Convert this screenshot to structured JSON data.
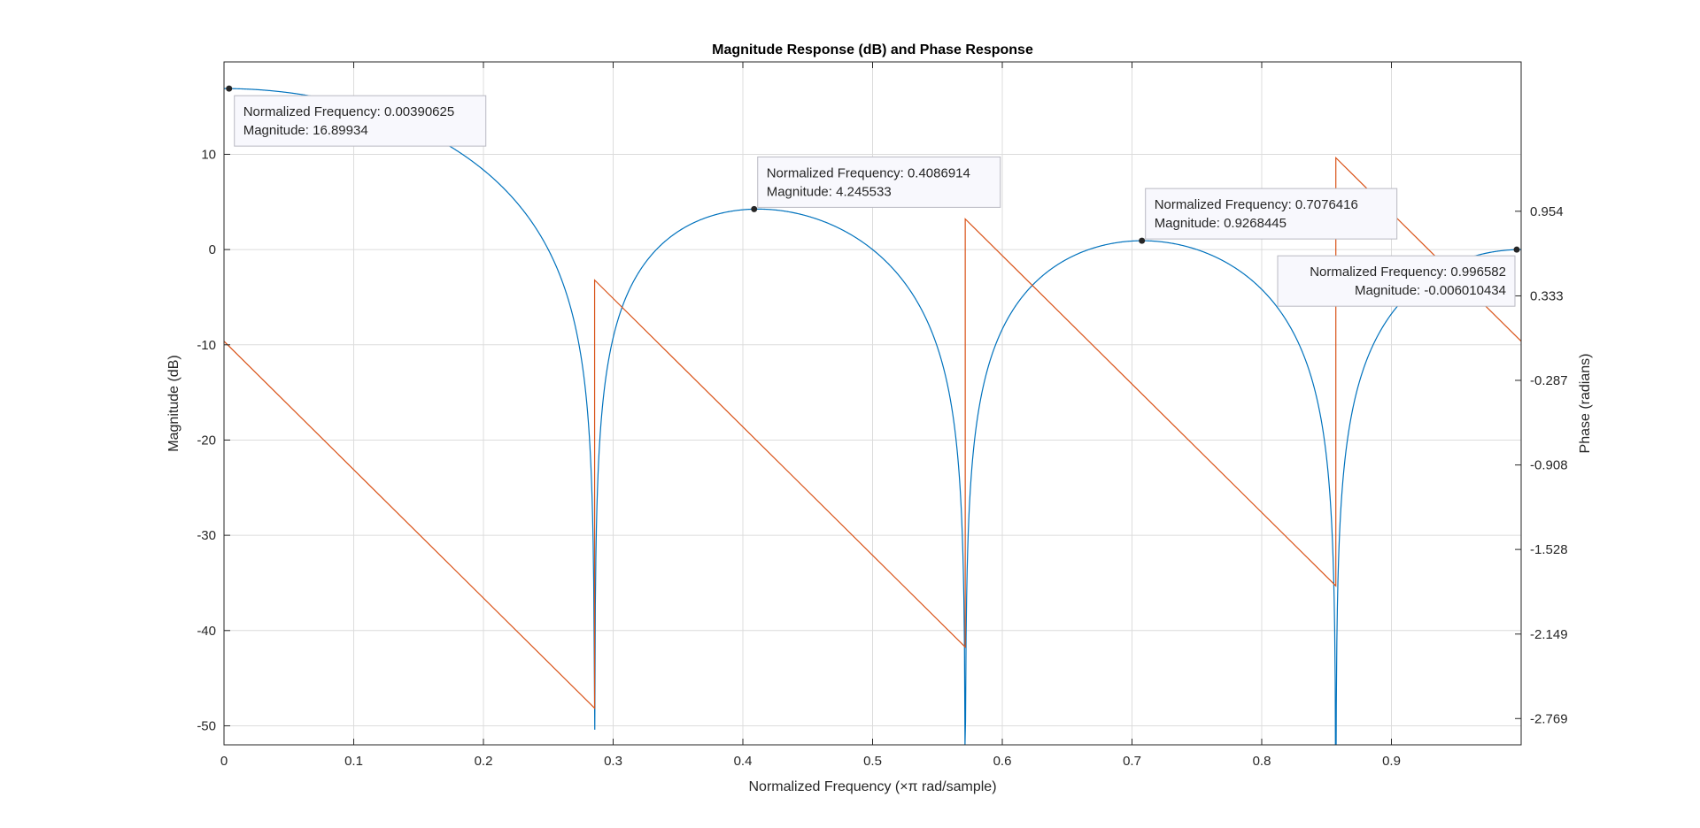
{
  "chart_data": {
    "type": "line",
    "title": "Magnitude Response (dB) and Phase Response",
    "xlabel": "Normalized Frequency (×π rad/sample)",
    "ylabel_left": "Magnitude (dB)",
    "ylabel_right": "Phase (radians)",
    "xlim": [
      0,
      1
    ],
    "ylim_left": [
      -52,
      19.7
    ],
    "ylim_right": [
      -2.962,
      2.05
    ],
    "grid": true,
    "x_ticks": [
      0,
      0.1,
      0.2,
      0.3,
      0.4,
      0.5,
      0.6,
      0.7,
      0.8,
      0.9
    ],
    "x_tick_labels": [
      "0",
      "0.1",
      "0.2",
      "0.3",
      "0.4",
      "0.5",
      "0.6",
      "0.7",
      "0.8",
      "0.9"
    ],
    "y_left_ticks": [
      10,
      0,
      -10,
      -20,
      -30,
      -40,
      -50
    ],
    "y_left_tick_labels": [
      "10",
      "0",
      "-10",
      "-20",
      "-30",
      "-40",
      "-50"
    ],
    "y_right_ticks": [
      0.954,
      0.333,
      -0.287,
      -0.908,
      -1.528,
      -2.149,
      -2.769
    ],
    "y_right_tick_labels": [
      "0.954",
      "0.333",
      "-0.287",
      "-0.908",
      "-1.528",
      "-2.149",
      "-2.769"
    ],
    "series": [
      {
        "name": "Magnitude",
        "axis": "left",
        "color": "#0072bd",
        "model": "moving_average",
        "taps": 7,
        "gain": 7,
        "floor_db": -52
      },
      {
        "name": "Phase",
        "axis": "right",
        "color": "#d95319",
        "model": "linear_wrapped",
        "slope_rad_per_unit": -9.42478,
        "wrap_jumps": [
          0.2857143,
          0.5714286,
          0.8571429
        ],
        "jump_size_rad": 3.14159
      }
    ],
    "datatips": [
      {
        "x": 0.00390625,
        "y": 16.89934,
        "line1": "Normalized Frequency: 0.00390625",
        "line2": "Magnitude: 16.89934",
        "align": "left"
      },
      {
        "x": 0.4086914,
        "y": 4.245533,
        "line1": "Normalized Frequency: 0.4086914",
        "line2": "Magnitude: 4.245533",
        "align": "left"
      },
      {
        "x": 0.7076416,
        "y": 0.9268445,
        "line1": "Normalized Frequency: 0.7076416",
        "line2": "Magnitude: 0.9268445",
        "align": "left"
      },
      {
        "x": 0.996582,
        "y": -0.006010434,
        "line1": "Normalized Frequency: 0.996582",
        "line2": "Magnitude: -0.006010434",
        "align": "right"
      }
    ]
  }
}
